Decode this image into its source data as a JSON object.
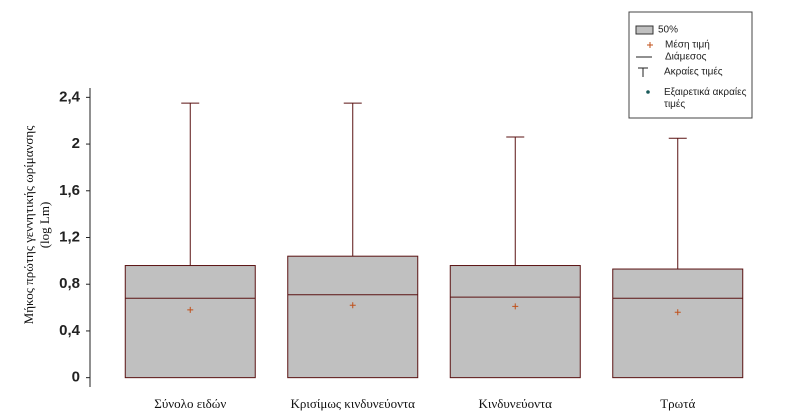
{
  "chart_data": {
    "type": "box",
    "ylabel": [
      "Μήκος πρώτης γεννητικής ωρίμανσης",
      "(log Lm)"
    ],
    "categories": [
      "Σύνολο ειδών",
      "Κρισίμως κινδυνεύοντα",
      "Κινδυνεύοντα",
      "Τρωτά"
    ],
    "min": [
      0,
      0,
      0,
      0
    ],
    "q1": [
      0,
      0,
      0,
      0
    ],
    "median": [
      0.68,
      0.71,
      0.69,
      0.68
    ],
    "q3": [
      0.96,
      1.04,
      0.96,
      0.93
    ],
    "max": [
      2.35,
      2.35,
      2.06,
      2.05
    ],
    "mean": [
      0.58,
      0.62,
      0.61,
      0.56
    ],
    "ylim": [
      -0.08,
      2.48
    ],
    "yticks": [
      0,
      {
        "value": 0.4,
        "label": "0,4"
      },
      {
        "value": 0.8,
        "label": "0,8"
      },
      {
        "value": 1.2,
        "label": "1,2"
      },
      {
        "value": 1.6,
        "label": "1,6"
      },
      2,
      {
        "value": 2.4,
        "label": "2,4"
      }
    ],
    "color": "#c0c0c0",
    "line_color": "#5a1212",
    "mean_color": "#c0501a",
    "legend": [
      "50%",
      "Μέση τιμή",
      "Διάμεσος",
      "Ακραίες τιμές",
      "Εξαιρετικά ακραίες τιμές"
    ]
  }
}
